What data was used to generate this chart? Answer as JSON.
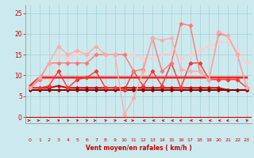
{
  "x": [
    0,
    1,
    2,
    3,
    4,
    5,
    6,
    7,
    8,
    9,
    10,
    11,
    12,
    13,
    14,
    15,
    16,
    17,
    18,
    19,
    20,
    21,
    22,
    23
  ],
  "background_color": "#cceaee",
  "grid_color": "#aad4d8",
  "xlabel": "Vent moyen/en rafales ( km/h )",
  "ylim": [
    -1.5,
    27
  ],
  "xlim": [
    -0.5,
    23.5
  ],
  "yticks": [
    0,
    5,
    10,
    15,
    20,
    25
  ],
  "series": [
    {
      "data": [
        6.5,
        6.5,
        6.5,
        6.5,
        6.5,
        6.5,
        6.5,
        6.5,
        6.5,
        6.5,
        6.5,
        6.5,
        6.5,
        6.5,
        6.5,
        6.5,
        6.5,
        6.5,
        6.5,
        6.5,
        6.5,
        6.5,
        6.5,
        6.5
      ],
      "color": "#880000",
      "lw": 1.4,
      "marker": "D",
      "ms": 1.8,
      "zorder": 5
    },
    {
      "data": [
        7,
        7,
        7,
        7.5,
        7,
        7,
        7,
        7,
        7,
        7,
        7,
        7,
        7,
        7,
        7,
        7,
        7,
        7,
        7,
        7,
        7,
        6.5,
        6.5,
        6.5
      ],
      "color": "#cc0000",
      "lw": 1.4,
      "marker": "D",
      "ms": 1.8,
      "zorder": 4
    },
    {
      "data": [
        7.5,
        9.5,
        9.5,
        9.5,
        9.5,
        9.5,
        9.5,
        9.5,
        9.5,
        9.5,
        9.5,
        9.5,
        9.5,
        9.5,
        9.5,
        9.5,
        9.5,
        9.5,
        9.5,
        9.5,
        9.5,
        9.5,
        9.5,
        9.5
      ],
      "color": "#ff2222",
      "lw": 2.0,
      "marker": null,
      "ms": 0,
      "zorder": 3
    },
    {
      "data": [
        7,
        7,
        7.5,
        11,
        7,
        9,
        9.5,
        11,
        7,
        7,
        6.5,
        11,
        7.5,
        11,
        7.5,
        13,
        7,
        13,
        13,
        9,
        9,
        9,
        9,
        7
      ],
      "color": "#ff3333",
      "lw": 1.0,
      "marker": "D",
      "ms": 2.2,
      "zorder": 6
    },
    {
      "data": [
        7,
        9,
        13,
        13,
        13,
        13,
        13,
        15,
        15,
        15,
        15,
        11,
        11.5,
        19,
        11,
        13,
        22.5,
        22,
        11,
        9,
        20,
        19.5,
        15,
        7
      ],
      "color": "#ff7777",
      "lw": 1.0,
      "marker": "D",
      "ms": 2.2,
      "zorder": 7
    },
    {
      "data": [
        7,
        9.5,
        13,
        17,
        15,
        16,
        15,
        17,
        15,
        15,
        0.5,
        4.5,
        11,
        19,
        18.5,
        19,
        11.5,
        11,
        11,
        9,
        20.5,
        19.5,
        15,
        7
      ],
      "color": "#ffaaaa",
      "lw": 1.0,
      "marker": "D",
      "ms": 2.2,
      "zorder": 8
    },
    {
      "data": [
        7,
        9,
        9,
        15,
        14,
        15,
        15.5,
        15,
        15,
        15,
        15,
        15,
        14,
        14,
        15,
        15.5,
        14,
        15,
        16,
        17,
        18,
        18,
        16,
        13
      ],
      "color": "#ffcccc",
      "lw": 1.0,
      "marker": "D",
      "ms": 2.2,
      "zorder": 2
    }
  ],
  "wind_arrows": {
    "angles_deg": [
      90,
      90,
      90,
      135,
      135,
      135,
      135,
      90,
      135,
      135,
      270,
      90,
      270,
      270,
      270,
      270,
      225,
      270,
      270,
      270,
      270,
      315,
      315,
      135
    ],
    "color": "#dd0000"
  }
}
